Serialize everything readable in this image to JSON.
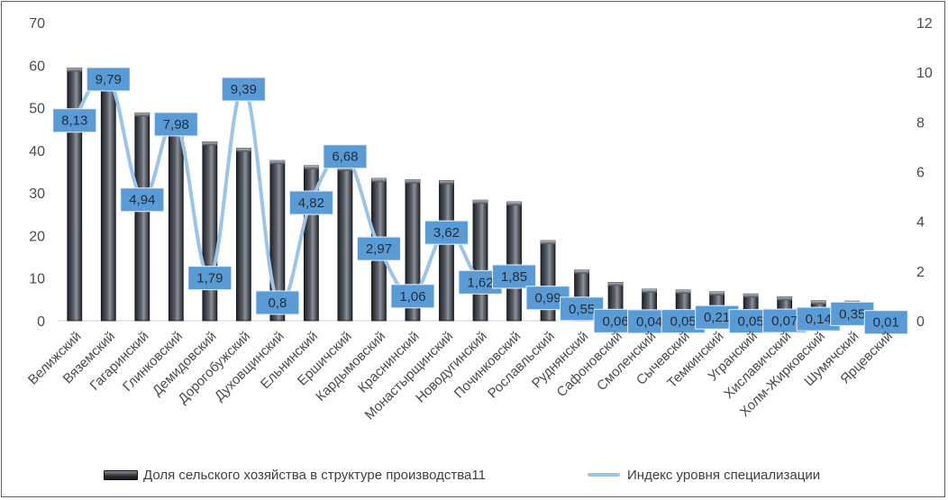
{
  "chart_data": {
    "type": "bar",
    "categories": [
      "Велижский",
      "Вяземский",
      "Гагаринский",
      "Глинковский",
      "Демидовский",
      "Дорогобужский",
      "Духовщинский",
      "Ельнинский",
      "Ершичский",
      "Кардымовский",
      "Краснинский",
      "Монастырщинский",
      "Новодугинский",
      "Починковский",
      "Рославльский",
      "Руднянский",
      "Сафоновский",
      "Смоленский",
      "Сычевский",
      "Темкинский",
      "Угранский",
      "Хиславичский",
      "Холм-Жирковский",
      "Шумячский",
      "Ярцевский"
    ],
    "series": [
      {
        "name": "Доля сельского хозяйства в структуре производства11",
        "type": "bar",
        "axis": "left",
        "values": [
          59.3,
          59.0,
          48.8,
          44.8,
          42.0,
          40.5,
          37.6,
          36.4,
          36.0,
          33.4,
          33.1,
          32.9,
          28.3,
          27.9,
          18.8,
          11.9,
          9.0,
          7.4,
          7.2,
          6.8,
          6.3,
          5.6,
          4.7,
          4.6,
          1.4
        ]
      },
      {
        "name": "Индекс уровня специализации",
        "type": "line",
        "axis": "right",
        "values": [
          8.13,
          9.79,
          4.94,
          7.98,
          1.79,
          9.39,
          0.8,
          4.82,
          6.68,
          2.97,
          1.06,
          3.62,
          1.62,
          1.85,
          0.99,
          0.55,
          0.06,
          0.04,
          0.05,
          0.21,
          0.05,
          0.07,
          0.14,
          0.35,
          0.01
        ],
        "labels": [
          "8,13",
          "9,79",
          "4,94",
          "7,98",
          "1,79",
          "9,39",
          "0,8",
          "4,82",
          "6,68",
          "2,97",
          "1,06",
          "3,62",
          "1,62",
          "1,85",
          "0,99",
          "0,55",
          "0,06",
          "0,04",
          "0,05",
          "0,21",
          "0,05",
          "0,07",
          "0,14",
          "0,35",
          "0,01"
        ]
      }
    ],
    "y_left": {
      "min": 0,
      "max": 70,
      "ticks": [
        "0",
        "10",
        "20",
        "30",
        "40",
        "50",
        "60",
        "70"
      ]
    },
    "y_right": {
      "min": 0,
      "max": 12,
      "ticks": [
        "0",
        "2",
        "4",
        "6",
        "8",
        "10",
        "12"
      ]
    },
    "grid": false,
    "legend_position": "bottom",
    "colors": {
      "bar_dark": "#24272e",
      "bar_light": "#8d929b",
      "line": "#9dc3e6",
      "label_box": "#5b9bd5",
      "text": "#4a4a4a"
    }
  },
  "legend": {
    "bar_label": "Доля сельского хозяйства в структуре производства11",
    "line_label": "Индекс уровня специализации"
  }
}
